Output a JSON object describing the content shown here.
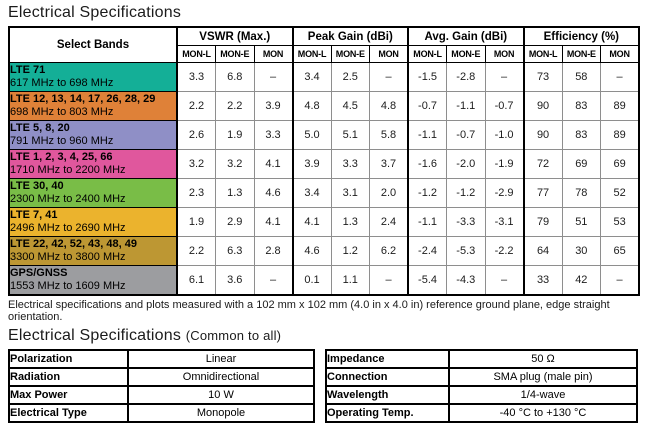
{
  "titles": {
    "main": "Electrical Specifications",
    "common_main": "Electrical Specifications",
    "common_suffix": "(Common to all)"
  },
  "spec_table": {
    "corner_label": "Select Bands",
    "groups": [
      "VSWR (Max.)",
      "Peak Gain (dBi)",
      "Avg. Gain (dBi)",
      "Efficiency (%)"
    ],
    "subcolumns": [
      "MON-L",
      "MON-E",
      "MON"
    ],
    "rows": [
      {
        "band": "LTE 71",
        "range": "617 MHz to 698 MHz",
        "color": "#14af97",
        "values": [
          "3.3",
          "6.8",
          "–",
          "3.4",
          "2.5",
          "–",
          "-1.5",
          "-2.8",
          "–",
          "73",
          "58",
          "–"
        ]
      },
      {
        "band": "LTE 12, 13, 14, 17, 26, 28, 29",
        "range": "698 MHz to 803 MHz",
        "color": "#df8138",
        "values": [
          "2.2",
          "2.2",
          "3.9",
          "4.8",
          "4.5",
          "4.8",
          "-0.7",
          "-1.1",
          "-0.7",
          "90",
          "83",
          "89"
        ]
      },
      {
        "band": "LTE 5, 8, 20",
        "range": "791 MHz to 960 MHz",
        "color": "#8f8fc6",
        "values": [
          "2.6",
          "1.9",
          "3.3",
          "5.0",
          "5.1",
          "5.8",
          "-1.1",
          "-0.7",
          "-1.0",
          "90",
          "83",
          "89"
        ]
      },
      {
        "band": "LTE 1, 2, 3, 4, 25, 66",
        "range": "1710 MHz to 2200 MHz",
        "color": "#e0579d",
        "values": [
          "3.2",
          "3.2",
          "4.1",
          "3.9",
          "3.3",
          "3.7",
          "-1.6",
          "-2.0",
          "-1.9",
          "72",
          "69",
          "69"
        ]
      },
      {
        "band": "LTE 30, 40",
        "range": "2300 MHz to 2400 MHz",
        "color": "#79bd47",
        "values": [
          "2.3",
          "1.3",
          "4.6",
          "3.4",
          "3.1",
          "2.0",
          "-1.2",
          "-1.2",
          "-2.9",
          "77",
          "78",
          "52"
        ]
      },
      {
        "band": "LTE 7, 41",
        "range": "2496 MHz to 2690 MHz",
        "color": "#ebb32d",
        "values": [
          "1.9",
          "2.9",
          "4.1",
          "4.1",
          "1.3",
          "2.4",
          "-1.1",
          "-3.3",
          "-3.1",
          "79",
          "51",
          "53"
        ]
      },
      {
        "band": "LTE 22, 42, 52, 43, 48, 49",
        "range": "3300 MHz to 3800 MHz",
        "color": "#bd9733",
        "values": [
          "2.2",
          "6.3",
          "2.8",
          "4.6",
          "1.2",
          "6.2",
          "-2.4",
          "-5.3",
          "-2.2",
          "64",
          "30",
          "65"
        ]
      },
      {
        "band": "GPS/GNSS",
        "range": "1553 MHz to 1609 MHz",
        "color": "#9c9da0",
        "values": [
          "6.1",
          "3.6",
          "–",
          "0.1",
          "1.1",
          "–",
          "-5.4",
          "-4.3",
          "–",
          "33",
          "42",
          "–"
        ]
      }
    ]
  },
  "footnote": "Electrical specifications and plots measured with a 102 mm x 102 mm (4.0 in x 4.0 in) reference ground plane, edge straight orientation.",
  "common_left": [
    {
      "label": "Polarization",
      "value": "Linear"
    },
    {
      "label": "Radiation",
      "value": "Omnidirectional"
    },
    {
      "label": "Max Power",
      "value": "10 W"
    },
    {
      "label": "Electrical Type",
      "value": "Monopole"
    }
  ],
  "common_right": [
    {
      "label": "Impedance",
      "value": "50 Ω"
    },
    {
      "label": "Connection",
      "value": "SMA plug (male pin)"
    },
    {
      "label": "Wavelength",
      "value": "1/4-wave"
    },
    {
      "label": "Operating Temp.",
      "value": "-40 °C to +130 °C"
    }
  ]
}
